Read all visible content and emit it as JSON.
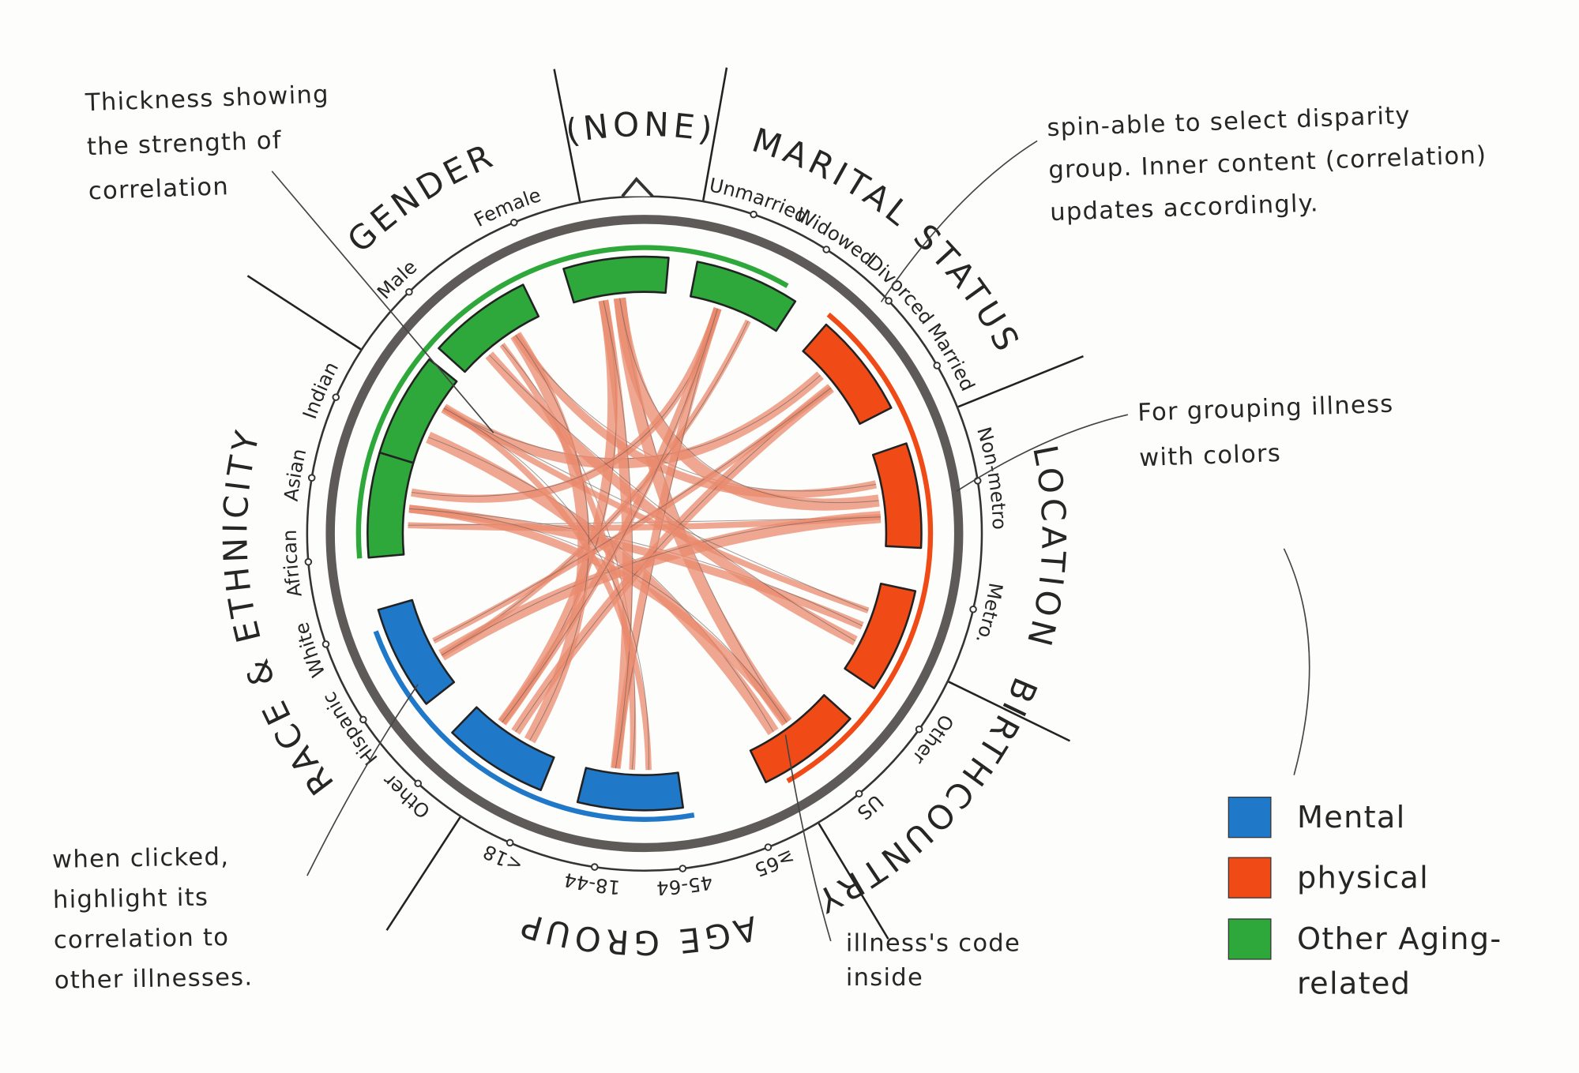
{
  "annotations": [
    {
      "lines": [
        "Thickness showing",
        "the strength of",
        "correlation"
      ]
    },
    {
      "lines": [
        "spin-able to select disparity",
        "group. Inner content (correlation)",
        "updates accordingly."
      ]
    },
    {
      "lines": [
        "For grouping illness",
        "with colors"
      ]
    },
    {
      "lines": [
        "when clicked,",
        "highlight its",
        "correlation to",
        "other illnesses."
      ]
    },
    {
      "lines": [
        "illness's code",
        "inside"
      ]
    }
  ],
  "groups": [
    {
      "label": "GENDER",
      "items": [
        "Male",
        "Female"
      ]
    },
    {
      "label": "(NONE)"
    },
    {
      "label": "MARITAL STATUS",
      "items": [
        "Unmarried",
        "Widowed",
        "Divorced",
        "Married"
      ]
    },
    {
      "label": "LOCATION",
      "items": [
        "Non-metro",
        "Metro."
      ]
    },
    {
      "label": "BIRTHCOUNTRY",
      "items": [
        "Other",
        "US"
      ]
    },
    {
      "label": "AGE GROUP",
      "items": [
        "≥65",
        "45-64",
        "18-44",
        "<18"
      ]
    },
    {
      "label": "RACE & ETHNICITY",
      "items": [
        "Other",
        "Hispanic",
        "White",
        "African",
        "Asian",
        "Indian"
      ]
    }
  ],
  "legend": [
    {
      "lines": [
        "Mental"
      ],
      "color": "#1f78c8"
    },
    {
      "lines": [
        "physical"
      ],
      "color": "#f04a16"
    },
    {
      "lines": [
        "Other Aging-",
        "related"
      ],
      "color": "#2ea83a"
    }
  ]
}
